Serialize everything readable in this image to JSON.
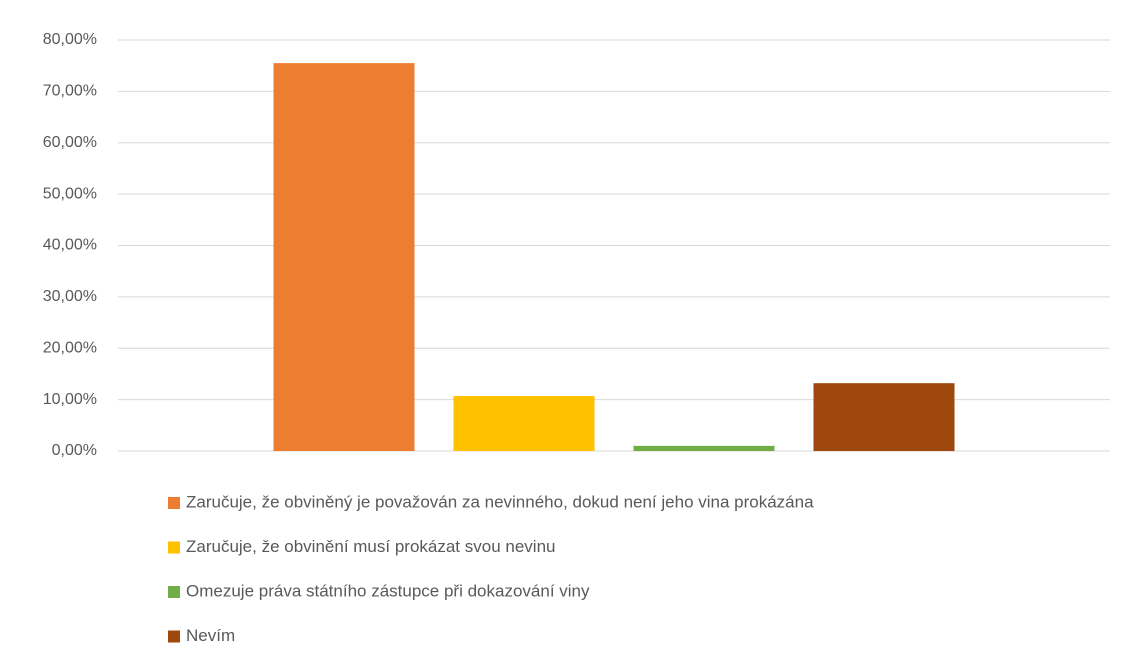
{
  "chart_data": {
    "type": "bar",
    "categories": [
      null
    ],
    "series": [
      {
        "name": "Zaručuje, že obviněný je považován za nevinného, dokud není jeho vina prokázána",
        "color": "#ed7d31",
        "values": [
          75.5
        ]
      },
      {
        "name": "Zaručuje, že obvinění musí prokázat svou nevinu",
        "color": "#ffc000",
        "values": [
          10.7
        ]
      },
      {
        "name": "Omezuje práva státního zástupce při dokazování viny",
        "color": "#70ad47",
        "values": [
          1.0
        ]
      },
      {
        "name": "Nevím",
        "color": "#9e480e",
        "values": [
          13.2
        ]
      }
    ],
    "ylim": [
      0,
      80
    ],
    "yticks": [
      {
        "value": 0,
        "label": "0,00%"
      },
      {
        "value": 10,
        "label": "10,00%"
      },
      {
        "value": 20,
        "label": "20,00%"
      },
      {
        "value": 30,
        "label": "30,00%"
      },
      {
        "value": 40,
        "label": "40,00%"
      },
      {
        "value": 50,
        "label": "50,00%"
      },
      {
        "value": 60,
        "label": "60,00%"
      },
      {
        "value": 70,
        "label": "70,00%"
      },
      {
        "value": 80,
        "label": "80,00%"
      }
    ],
    "grid": true,
    "legend": "bottom"
  }
}
